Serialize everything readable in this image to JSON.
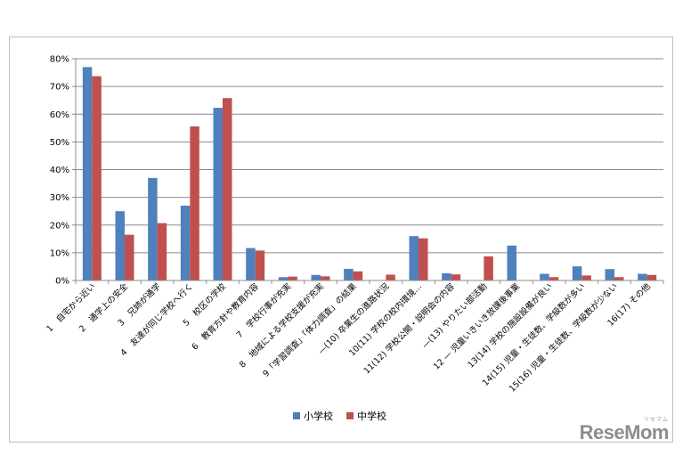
{
  "chart_data": {
    "type": "bar",
    "ylim": [
      0,
      80
    ],
    "y_ticks": [
      "0%",
      "10%",
      "20%",
      "30%",
      "40%",
      "50%",
      "60%",
      "70%",
      "80%"
    ],
    "grid": true,
    "legend_position": "bottom",
    "categories": [
      "1　自宅から近い",
      "2　通学上の安全",
      "3　兄姉が通学",
      "4　友達が同じ学校へ行く",
      "5　校区の学校",
      "6　教育方針や教育内容",
      "7　学校行事が充実",
      "8　地域による学校支援が充実",
      "9「学習調査」「体力調査」の結果",
      "—(10) 卒業生の進路状況",
      "10(11) 学校の校内環境…",
      "11(12) 学校公開・説明会の内容",
      "—(13) やりたい部活動",
      "12 — 児童いきいき放課後事業",
      "13(14) 学校の施設設備が良い",
      "14(15) 児童・生徒数、学級数が多い",
      "15(16) 児童・生徒数、学級数が少ない",
      "16(17) その他"
    ],
    "series": [
      {
        "name": "小学校",
        "color": "#4f81bd",
        "values": [
          77,
          25,
          37,
          27,
          62.3,
          11.7,
          1.2,
          2,
          4.2,
          null,
          16,
          2.6,
          null,
          12.6,
          2.4,
          5.1,
          4.1,
          2.4
        ]
      },
      {
        "name": "中学校",
        "color": "#c0504d",
        "values": [
          73.7,
          16.5,
          20.7,
          55.6,
          65.8,
          10.8,
          1.4,
          1.5,
          3.3,
          2.1,
          15.2,
          2.2,
          8.7,
          null,
          1.2,
          1.8,
          1.2,
          2
        ]
      }
    ]
  },
  "watermark": {
    "ruby": "リセマム",
    "logo": "ReseMom"
  }
}
